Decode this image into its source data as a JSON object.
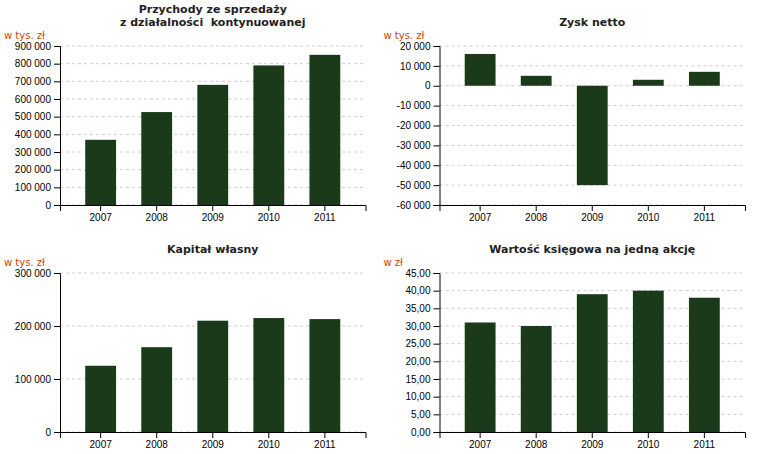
{
  "chart_data": [
    {
      "type": "bar",
      "title": "Przychody ze sprzedaży\nz działalności  kontynuowanej",
      "ylabel": "w tys. zł",
      "categories": [
        "2007",
        "2008",
        "2009",
        "2010",
        "2011"
      ],
      "values": [
        369000,
        526000,
        680000,
        790000,
        850000
      ],
      "color": "#1a3a1a",
      "ylim": [
        0,
        900000
      ],
      "yticks": [
        0,
        {
          "value": 100000,
          "label": "100 000"
        },
        {
          "value": 200000,
          "label": "200 000"
        },
        {
          "value": 300000,
          "label": "300 000"
        },
        {
          "value": 400000,
          "label": "400 000"
        },
        {
          "value": 500000,
          "label": "500 000"
        },
        {
          "value": 600000,
          "label": "600 000"
        },
        {
          "value": 700000,
          "label": "700 000"
        },
        {
          "value": 800000,
          "label": "800 000"
        },
        {
          "value": 900000,
          "label": "900 000"
        }
      ],
      "grid": true
    },
    {
      "type": "bar",
      "title": "Zysk netto",
      "ylabel": "w tys. zł",
      "categories": [
        "2007",
        "2008",
        "2009",
        "2010",
        "2011"
      ],
      "values": [
        16000,
        5000,
        -50000,
        3000,
        7000
      ],
      "color": "#1a3a1a",
      "ylim": [
        -60000,
        20000
      ],
      "yticks": [
        {
          "value": -60000,
          "label": "-60 000"
        },
        {
          "value": -50000,
          "label": "-50 000"
        },
        {
          "value": -40000,
          "label": "-40 000"
        },
        {
          "value": -30000,
          "label": "-30 000"
        },
        {
          "value": -20000,
          "label": "-20 000"
        },
        {
          "value": -10000,
          "label": "-10 000"
        },
        0,
        {
          "value": 10000,
          "label": "10 000"
        },
        {
          "value": 20000,
          "label": "20 000"
        }
      ],
      "grid": true
    },
    {
      "type": "bar",
      "title": "Kapitał własny",
      "ylabel": "w tys. zł",
      "categories": [
        "2007",
        "2008",
        "2009",
        "2010",
        "2011"
      ],
      "values": [
        125000,
        160000,
        210000,
        215000,
        213000
      ],
      "color": "#1a3a1a",
      "ylim": [
        0,
        300000
      ],
      "yticks": [
        0,
        {
          "value": 100000,
          "label": "100 000"
        },
        {
          "value": 200000,
          "label": "200 000"
        },
        {
          "value": 300000,
          "label": "300 000"
        }
      ],
      "grid": true
    },
    {
      "type": "bar",
      "title": "Wartość księgowa na jedną akcję",
      "ylabel": "w zł",
      "categories": [
        "2007",
        "2008",
        "2009",
        "2010",
        "2011"
      ],
      "values": [
        31.0,
        30.0,
        39.0,
        40.0,
        38.0
      ],
      "color": "#1a3a1a",
      "ylim": [
        0,
        45
      ],
      "yticks": [
        {
          "value": 0,
          "label": "0,00"
        },
        {
          "value": 5.0,
          "label": "5,00"
        },
        {
          "value": 10.0,
          "label": "10,00"
        },
        {
          "value": 15.0,
          "label": "15,00"
        },
        {
          "value": 20.0,
          "label": "20,00"
        },
        {
          "value": 25.0,
          "label": "25,00"
        },
        {
          "value": 30.0,
          "label": "30,00"
        },
        {
          "value": 35.0,
          "label": "35,00"
        },
        {
          "value": 40.0,
          "label": "40,00"
        },
        {
          "value": 45.0,
          "label": "45,00"
        }
      ],
      "grid": true
    }
  ]
}
